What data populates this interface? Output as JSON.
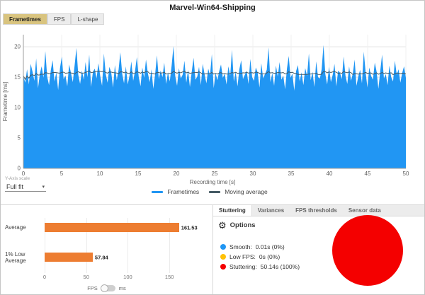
{
  "window": {
    "title": "Marvel-Win64-Shipping"
  },
  "colors": {
    "accent_blue": "#2196F3",
    "bar_orange": "#ED7D31",
    "stutter_red": "#F40000",
    "low_fps_amber": "#FFC107",
    "moving_avg": "#455A64",
    "active_tab": "#D9C47F"
  },
  "icons": {
    "gear-icon": "⚙",
    "chevron-down-icon": "▾"
  },
  "main_tabs": [
    {
      "label": "Frametimes",
      "active": true
    },
    {
      "label": "FPS",
      "active": false
    },
    {
      "label": "L-shape",
      "active": false
    }
  ],
  "y_axis_scale": {
    "label": "Y-Axis scale",
    "value": "Full fit"
  },
  "fps_unit_toggle": {
    "left": "FPS",
    "right": "ms"
  },
  "analysis": {
    "tabs": [
      "Stuttering",
      "Variances",
      "FPS thresholds",
      "Sensor data"
    ],
    "options_label": "Options",
    "legend": [
      {
        "name": "Smooth:",
        "value": "0.01s (0%)",
        "color": "#2196F3"
      },
      {
        "name": "Low FPS:",
        "value": "0s (0%)",
        "color": "#FFC107"
      },
      {
        "name": "Stuttering:",
        "value": "50.14s (100%)",
        "color": "#F40000"
      }
    ]
  },
  "chart_data": [
    {
      "type": "area",
      "title": "Frametime graph",
      "xlabel": "Recording time [s]",
      "ylabel": "Frametime [ms]",
      "xlim": [
        0,
        50
      ],
      "ylim": [
        0,
        22
      ],
      "x_ticks": [
        0,
        5,
        10,
        15,
        20,
        25,
        30,
        35,
        40,
        45,
        50
      ],
      "y_ticks": [
        0,
        5,
        10,
        15,
        20
      ],
      "grid": true,
      "legend_position": "bottom-center",
      "series": [
        {
          "name": "Frametimes",
          "color": "#2196F3",
          "values": [
            15.2,
            14.1,
            16.3,
            13.8,
            17.2,
            15.9,
            14.4,
            18.1,
            13.2,
            15.6,
            16.8,
            14.9,
            19.3,
            15.1,
            13.7,
            16.2,
            17.8,
            14.3,
            15.8,
            12.9,
            16.5,
            18.4,
            14.7,
            15.3,
            13.5,
            17.1,
            15.7,
            14.2,
            16.9,
            19.8,
            15.4,
            13.9,
            16.1,
            14.6,
            17.5,
            15.0,
            18.7,
            13.4,
            15.9,
            16.4,
            14.8,
            17.3,
            15.2,
            13.6,
            18.9,
            15.5,
            14.1,
            16.7,
            15.8,
            13.3,
            17.0,
            14.5,
            16.2,
            19.1,
            15.6,
            14.0,
            16.8,
            13.8,
            15.3,
            17.6,
            14.4,
            16.0,
            18.3,
            15.1,
            13.5,
            16.6,
            14.9,
            17.9,
            15.7,
            14.2,
            16.3,
            13.1,
            15.5,
            18.6,
            14.7,
            16.1,
            15.0,
            17.4,
            13.9,
            15.8,
            14.3,
            16.9,
            20.1,
            15.2,
            13.6,
            16.5,
            14.8,
            15.4,
            17.7,
            14.1,
            16.2,
            13.4,
            15.9,
            18.2,
            14.6,
            15.1,
            16.7,
            13.7,
            17.2,
            15.5,
            14.0,
            16.4,
            15.3,
            18.8,
            13.2,
            15.7,
            14.5,
            16.0,
            17.1,
            14.9,
            15.6,
            13.8,
            16.8,
            15.2,
            19.5,
            14.3,
            15.9,
            13.5,
            16.3,
            17.8,
            14.7,
            15.4,
            16.1,
            13.9,
            18.0,
            15.0,
            14.4,
            16.6,
            15.8,
            13.3,
            17.3,
            14.8,
            15.5,
            16.2,
            19.9,
            14.2,
            15.7,
            13.6,
            16.9,
            15.1,
            17.5,
            14.6,
            15.3,
            13.0,
            16.4,
            18.5,
            14.9,
            15.6,
            12.8,
            16.0,
            17.0,
            14.3,
            15.8,
            13.7,
            16.5,
            15.2,
            18.9,
            14.5,
            15.9,
            13.4,
            17.6,
            15.0,
            14.8,
            16.3,
            20.3,
            15.5,
            13.8,
            16.7,
            14.2,
            15.4,
            17.2,
            13.5,
            16.1,
            15.7,
            14.7,
            18.4,
            15.3,
            13.9,
            16.8,
            14.4,
            15.6,
            17.9,
            13.6,
            15.1,
            16.2,
            14.0,
            19.2,
            15.8,
            13.3,
            16.6,
            15.2,
            14.6,
            17.4,
            15.9,
            13.1,
            16.0,
            18.7,
            14.8,
            15.5,
            13.7,
            16.9,
            15.0,
            14.3,
            17.7,
            15.4,
            16.3,
            14.1,
            15.7,
            16.8,
            14.9
          ]
        },
        {
          "name": "Moving average",
          "color": "#455A64",
          "derived": "moving_average",
          "window": 15
        }
      ]
    },
    {
      "type": "bar",
      "orientation": "horizontal",
      "categories": [
        "Average",
        "1% Low Average"
      ],
      "values": [
        161.53,
        57.84
      ],
      "value_labels": [
        "161.53",
        "57.84"
      ],
      "x_ticks": [
        0,
        50,
        100,
        150
      ],
      "xlim": [
        0,
        172
      ],
      "bar_color": "#ED7D31",
      "xlabel_units": [
        "FPS",
        "ms"
      ]
    },
    {
      "type": "pie",
      "title": "Stuttering analysis",
      "slices": [
        {
          "label": "Smooth",
          "value": 0.01,
          "color": "#2196F3"
        },
        {
          "label": "Low FPS",
          "value": 0,
          "color": "#FFC107"
        },
        {
          "label": "Stuttering",
          "value": 50.14,
          "color": "#F40000"
        }
      ]
    }
  ]
}
